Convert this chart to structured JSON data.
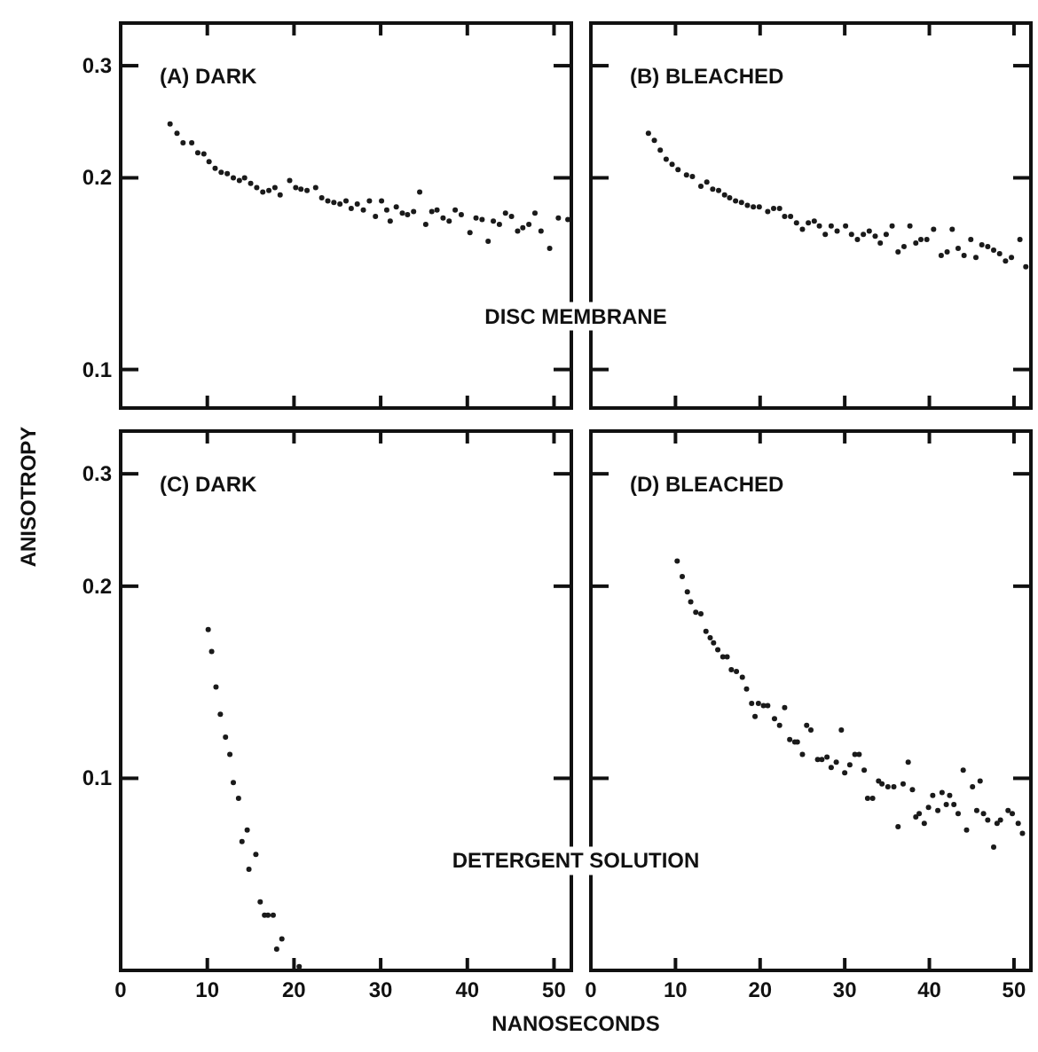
{
  "chart_data": [
    {
      "type": "scatter",
      "title": "(A) DARK",
      "ylabel": "ANISOTROPY",
      "annotations": [
        "DISC MEMBRANE"
      ],
      "log": true,
      "marker": "circle",
      "xlim": [
        0,
        52
      ],
      "xticks": [
        0,
        10,
        20,
        30,
        40,
        50
      ],
      "ylim": [
        0.087,
        0.35
      ],
      "yticks": [
        0.1,
        0.2,
        0.3
      ],
      "tick_labels": "y",
      "series": [
        {
          "color": "#1a1a1a",
          "x": [
            5.7,
            6.5,
            7.2,
            8.2,
            8.9,
            9.6,
            10.2,
            10.9,
            11.6,
            12.3,
            13,
            13.7,
            14.3,
            15,
            15.7,
            16.4,
            17.1,
            17.8,
            18.4,
            19.5,
            20.2,
            20.8,
            21.5,
            22.5,
            23.2,
            23.9,
            24.6,
            25.3,
            26,
            26.6,
            27.3,
            28,
            28.7,
            29.4,
            30.1,
            30.7,
            31.1,
            31.8,
            32.5,
            33.1,
            33.8,
            34.5,
            35.2,
            35.9,
            36.5,
            37.2,
            37.9,
            38.6,
            39.3,
            40.3,
            41,
            41.7,
            42.4,
            43,
            43.7,
            44.4,
            45.1,
            45.8,
            46.4,
            47.1,
            47.8,
            48.5,
            49.5,
            50.5,
            51.6
          ],
          "values": [
            0.243,
            0.235,
            0.227,
            0.227,
            0.219,
            0.218,
            0.212,
            0.207,
            0.204,
            0.203,
            0.2,
            0.198,
            0.2,
            0.196,
            0.193,
            0.19,
            0.191,
            0.193,
            0.188,
            0.198,
            0.193,
            0.192,
            0.191,
            0.193,
            0.186,
            0.184,
            0.183,
            0.182,
            0.184,
            0.179,
            0.182,
            0.178,
            0.184,
            0.174,
            0.184,
            0.178,
            0.171,
            0.18,
            0.176,
            0.175,
            0.177,
            0.19,
            0.169,
            0.177,
            0.178,
            0.173,
            0.171,
            0.178,
            0.175,
            0.164,
            0.173,
            0.172,
            0.159,
            0.171,
            0.169,
            0.176,
            0.174,
            0.165,
            0.167,
            0.169,
            0.176,
            0.165,
            0.155,
            0.173,
            0.172
          ]
        }
      ]
    },
    {
      "type": "scatter",
      "title": "(B) BLEACHED",
      "log": true,
      "marker": "circle",
      "xlim": [
        0,
        52
      ],
      "xticks": [
        0,
        10,
        20,
        30,
        40,
        50
      ],
      "ylim": [
        0.087,
        0.35
      ],
      "yticks": [
        0.1,
        0.2,
        0.3
      ],
      "tick_labels": false,
      "series": [
        {
          "color": "#1a1a1a",
          "x": [
            6.8,
            7.5,
            8.2,
            8.9,
            9.6,
            10.3,
            11.3,
            12,
            13,
            13.7,
            14.4,
            15.1,
            15.8,
            16.4,
            17.1,
            17.8,
            18.5,
            19.2,
            19.9,
            20.9,
            21.6,
            22.3,
            22.9,
            23.6,
            24.3,
            25,
            25.7,
            26.4,
            27,
            27.7,
            28.4,
            29.1,
            30.1,
            30.8,
            31.5,
            32.2,
            32.9,
            33.6,
            34.2,
            34.9,
            35.6,
            36.3,
            37,
            37.7,
            38.4,
            39,
            39.7,
            40.5,
            41.4,
            42.1,
            42.7,
            43.4,
            44.1,
            44.9,
            45.5,
            46.2,
            46.9,
            47.6,
            48.3,
            49,
            49.7,
            50.7,
            51.4
          ],
          "values": [
            0.235,
            0.229,
            0.221,
            0.214,
            0.21,
            0.206,
            0.202,
            0.201,
            0.194,
            0.197,
            0.192,
            0.191,
            0.188,
            0.186,
            0.184,
            0.183,
            0.181,
            0.18,
            0.18,
            0.177,
            0.179,
            0.179,
            0.174,
            0.174,
            0.17,
            0.166,
            0.17,
            0.171,
            0.168,
            0.163,
            0.168,
            0.165,
            0.168,
            0.163,
            0.16,
            0.163,
            0.165,
            0.162,
            0.158,
            0.163,
            0.168,
            0.153,
            0.156,
            0.168,
            0.158,
            0.16,
            0.16,
            0.166,
            0.151,
            0.153,
            0.166,
            0.155,
            0.151,
            0.16,
            0.15,
            0.157,
            0.156,
            0.154,
            0.152,
            0.148,
            0.15,
            0.16,
            0.145
          ]
        }
      ]
    },
    {
      "type": "scatter",
      "title": "(C) DARK",
      "xlabel": "NANOSECONDS",
      "annotations": [
        "DETERGENT SOLUTION"
      ],
      "log": true,
      "marker": "circle",
      "xlim": [
        0,
        52
      ],
      "xticks": [
        0,
        10,
        20,
        30,
        40,
        50
      ],
      "ylim": [
        0.05,
        0.35
      ],
      "yticks": [
        0.1,
        0.2,
        0.3
      ],
      "series": [
        {
          "color": "#1a1a1a",
          "x": [
            10.1,
            10.5,
            11,
            11.5,
            12.1,
            12.6,
            13,
            13.6,
            14,
            14.6,
            14.8,
            15.6,
            16.1,
            16.6,
            17,
            17.6,
            18,
            18.6,
            20.6
          ],
          "values": [
            0.171,
            0.158,
            0.139,
            0.126,
            0.116,
            0.109,
            0.0985,
            0.093,
            0.0796,
            0.083,
            0.072,
            0.076,
            0.064,
            0.061,
            0.061,
            0.061,
            0.054,
            0.056,
            0.0507
          ]
        }
      ]
    },
    {
      "type": "scatter",
      "title": "(D) BLEACHED",
      "log": true,
      "marker": "circle",
      "xlim": [
        0,
        52
      ],
      "xticks": [
        0,
        10,
        20,
        30,
        40,
        50
      ],
      "ylim": [
        0.05,
        0.35
      ],
      "yticks": [
        0.1,
        0.2,
        0.3
      ],
      "tick_labels": "x",
      "series": [
        {
          "color": "#1a1a1a",
          "x": [
            10.2,
            10.8,
            11.4,
            11.8,
            12.4,
            13,
            13.6,
            14.1,
            14.5,
            15,
            15.6,
            16.1,
            16.6,
            17.2,
            17.9,
            18.4,
            19,
            19.4,
            19.8,
            20.4,
            20.9,
            21.7,
            22.3,
            22.9,
            23.5,
            24.1,
            24.4,
            25,
            25.5,
            26,
            26.8,
            27.3,
            27.9,
            28.4,
            29,
            29.6,
            30,
            30.6,
            31.2,
            31.7,
            32.3,
            32.7,
            33.3,
            34,
            34.4,
            35.1,
            35.8,
            36.3,
            36.9,
            37.5,
            38,
            38.4,
            38.8,
            39.4,
            39.9,
            40.4,
            41,
            41.5,
            42,
            42.4,
            42.9,
            43.4,
            44,
            44.4,
            45.1,
            45.6,
            46,
            46.4,
            46.9,
            47.6,
            48,
            48.4,
            49.3,
            49.8,
            50.5,
            51
          ],
          "values": [
            0.219,
            0.207,
            0.196,
            0.189,
            0.182,
            0.181,
            0.17,
            0.166,
            0.163,
            0.159,
            0.155,
            0.155,
            0.148,
            0.147,
            0.144,
            0.138,
            0.131,
            0.125,
            0.131,
            0.13,
            0.13,
            0.124,
            0.121,
            0.129,
            0.115,
            0.114,
            0.114,
            0.109,
            0.121,
            0.119,
            0.107,
            0.107,
            0.108,
            0.104,
            0.106,
            0.119,
            0.102,
            0.105,
            0.109,
            0.109,
            0.103,
            0.093,
            0.093,
            0.099,
            0.098,
            0.097,
            0.097,
            0.084,
            0.098,
            0.106,
            0.096,
            0.087,
            0.088,
            0.085,
            0.09,
            0.094,
            0.089,
            0.095,
            0.091,
            0.094,
            0.091,
            0.088,
            0.103,
            0.083,
            0.097,
            0.089,
            0.099,
            0.088,
            0.086,
            0.078,
            0.085,
            0.086,
            0.089,
            0.088,
            0.085,
            0.082
          ]
        }
      ]
    }
  ]
}
